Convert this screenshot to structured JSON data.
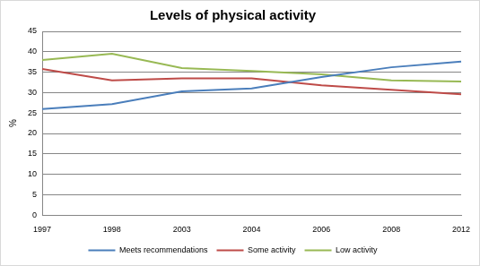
{
  "chart_data": {
    "type": "line",
    "title": "Levels of physical activity",
    "y_label": "%",
    "categories": [
      "1997",
      "1998",
      "2003",
      "2004",
      "2006",
      "2008",
      "2012"
    ],
    "series": [
      {
        "name": "Meets recommendations",
        "color": "#4a7ebb",
        "values": [
          26,
          27.2,
          30.3,
          31,
          33.8,
          36.2,
          37.6
        ]
      },
      {
        "name": "Some activity",
        "color": "#be4b48",
        "values": [
          35.8,
          33,
          33.5,
          33.5,
          31.8,
          30.7,
          29.6
        ]
      },
      {
        "name": "Low activity",
        "color": "#98b954",
        "values": [
          38,
          39.5,
          36,
          35.3,
          34.5,
          33,
          32.7
        ]
      }
    ],
    "ylim": [
      0,
      45
    ],
    "yticks": [
      0,
      5,
      10,
      15,
      20,
      25,
      30,
      35,
      40,
      45
    ],
    "grid": true,
    "legend": "bottom"
  }
}
